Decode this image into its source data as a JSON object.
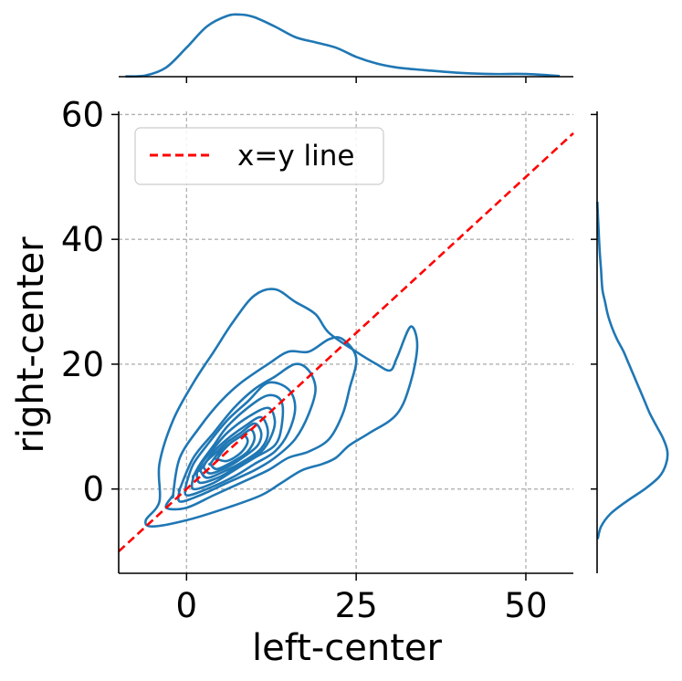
{
  "chart_data": {
    "type": "contour",
    "xlabel": "left-center",
    "ylabel": "right-center",
    "xlim": [
      -10,
      57
    ],
    "ylim": [
      -13.5,
      60.5
    ],
    "xticks": [
      0,
      25,
      50
    ],
    "yticks": [
      0,
      20,
      40,
      60
    ],
    "xtick_labels": [
      "0",
      "25",
      "50"
    ],
    "ytick_labels": [
      "0",
      "20",
      "40",
      "60"
    ],
    "grid": true,
    "legend": {
      "placement": "top-left",
      "entries": [
        "x=y line"
      ]
    },
    "colors": {
      "kde": "#1f77b4",
      "xy_line": "#ff0000",
      "grid": "#b0b0b0"
    },
    "reference_line": {
      "name": "x=y line",
      "x": [
        -10,
        57
      ],
      "y": [
        -10,
        57
      ]
    },
    "contour_levels": [
      {
        "x": [
          -4,
          -6,
          -5,
          0,
          6,
          11,
          14,
          17,
          20,
          22,
          24,
          27,
          31,
          33,
          34,
          33,
          31,
          30,
          28,
          25,
          21,
          19,
          16,
          13,
          10,
          7,
          4,
          1,
          -2,
          -4
        ],
        "y": [
          -2,
          -5,
          -6,
          -5,
          -3,
          -1,
          1,
          3,
          4,
          5,
          7,
          9,
          12,
          17,
          23,
          26,
          21,
          19,
          20,
          22,
          25,
          28,
          30,
          32,
          31,
          27,
          22,
          17,
          11,
          4
        ]
      },
      {
        "x": [
          -2,
          -3,
          0,
          4,
          8,
          12,
          15,
          18,
          21,
          23,
          24,
          25,
          23,
          21,
          18,
          15,
          12,
          8,
          5,
          2,
          -1,
          -2
        ],
        "y": [
          -1,
          -3,
          -3,
          -1,
          1,
          3,
          5,
          6,
          8,
          12,
          16,
          21,
          24,
          24,
          22,
          22,
          20,
          17,
          14,
          10,
          5,
          -1
        ]
      },
      {
        "x": [
          -1,
          -1,
          2,
          6,
          10,
          13,
          16,
          18,
          19,
          18,
          16,
          13,
          10,
          7,
          4,
          1,
          -1
        ],
        "y": [
          0,
          -2,
          -1,
          1,
          3,
          5,
          8,
          12,
          16,
          19,
          20,
          18,
          16,
          13,
          9,
          5,
          0
        ]
      },
      {
        "x": [
          0,
          0,
          3,
          7,
          10,
          13,
          15,
          16,
          15,
          12,
          9,
          6,
          3,
          1,
          0
        ],
        "y": [
          1,
          -1,
          0,
          2,
          4,
          6,
          9,
          13,
          16,
          17,
          14,
          11,
          7,
          4,
          1
        ]
      },
      {
        "x": [
          1,
          1,
          4,
          7,
          10,
          13,
          14,
          14,
          12,
          9,
          6,
          4,
          2,
          1
        ],
        "y": [
          2,
          0,
          1,
          3,
          5,
          7,
          10,
          14,
          15,
          13,
          10,
          7,
          4,
          2
        ]
      },
      {
        "x": [
          1.5,
          2,
          5,
          8,
          11,
          12.5,
          13,
          12,
          9,
          6,
          4,
          2.5,
          1.5
        ],
        "y": [
          2.5,
          1,
          2,
          4,
          6,
          8.5,
          11,
          13,
          11.5,
          9,
          6.5,
          4.5,
          2.5
        ]
      },
      {
        "x": [
          2,
          3,
          5.5,
          8.5,
          11,
          12,
          11,
          8.5,
          6,
          4,
          3,
          2
        ],
        "y": [
          3,
          1.8,
          2.8,
          4.5,
          6.5,
          9,
          11.5,
          10,
          8,
          6,
          4.5,
          3
        ]
      },
      {
        "x": [
          2.5,
          3.5,
          6,
          8.5,
          10.5,
          11,
          10,
          8,
          6,
          4.5,
          3,
          2.5
        ],
        "y": [
          3.5,
          2.5,
          3.5,
          5.2,
          7,
          9,
          10.5,
          9,
          7.5,
          6,
          4.5,
          3.5
        ]
      },
      {
        "x": [
          3.5,
          4.5,
          7,
          9,
          10,
          9.5,
          8,
          6,
          4.5,
          3.5
        ],
        "y": [
          4,
          3.2,
          4.5,
          6,
          8,
          9.5,
          8.5,
          7,
          5.5,
          4
        ]
      },
      {
        "x": [
          4.5,
          6,
          8,
          9,
          8.5,
          7,
          5.5,
          4.5
        ],
        "y": [
          4.8,
          4.5,
          5.8,
          7.5,
          8.5,
          7.8,
          6.3,
          4.8
        ]
      }
    ],
    "marginal_x": {
      "x": [
        -9,
        -6,
        -3,
        0,
        3,
        6,
        8,
        10,
        13,
        16,
        19,
        22,
        25,
        28,
        31,
        35,
        40,
        45,
        50,
        55
      ],
      "density": [
        0.0002,
        0.001,
        0.007,
        0.022,
        0.038,
        0.046,
        0.047,
        0.045,
        0.038,
        0.03,
        0.026,
        0.022,
        0.015,
        0.01,
        0.007,
        0.005,
        0.003,
        0.002,
        0.002,
        0.0005
      ]
    },
    "marginal_y": {
      "y": [
        -8,
        -6,
        -4,
        -2,
        0,
        2,
        4,
        6,
        8,
        10,
        12,
        14,
        16,
        18,
        20,
        22,
        24,
        26,
        28,
        30,
        32,
        35,
        38,
        42,
        46
      ],
      "density": [
        0.0005,
        0.003,
        0.01,
        0.022,
        0.036,
        0.047,
        0.052,
        0.053,
        0.05,
        0.045,
        0.04,
        0.036,
        0.032,
        0.028,
        0.024,
        0.02,
        0.015,
        0.011,
        0.008,
        0.006,
        0.004,
        0.003,
        0.002,
        0.001,
        0.0002
      ]
    }
  }
}
